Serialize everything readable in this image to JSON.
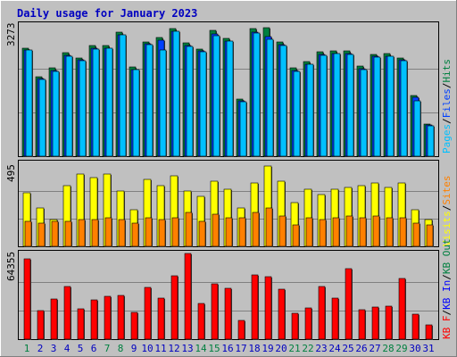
{
  "chart_data": {
    "type": "bar",
    "title": "Daily usage for January 2023",
    "colors": {
      "background": "#c0c0c0",
      "title": "#0000c0",
      "hits": "#008040",
      "files": "#0040ff",
      "pages": "#00c0ff",
      "visits": "#ffff00",
      "sites": "#ff8000",
      "kb_f": "#ff0000",
      "kb_in": "#0000ff",
      "kb_out": "#008040",
      "weekend_label": "#008040",
      "weekday_label": "#0000c0"
    },
    "days": [
      "1",
      "2",
      "3",
      "4",
      "5",
      "6",
      "7",
      "8",
      "9",
      "10",
      "11",
      "12",
      "13",
      "14",
      "15",
      "16",
      "17",
      "18",
      "19",
      "20",
      "21",
      "22",
      "23",
      "24",
      "25",
      "26",
      "27",
      "28",
      "29",
      "30",
      "31"
    ],
    "weekend_days": [
      "1",
      "7",
      "8",
      "14",
      "15",
      "21",
      "22",
      "28",
      "29"
    ],
    "top_panel": {
      "max_label": "3273",
      "max": 3273,
      "legend": [
        "Pages",
        "/",
        "Files",
        "/",
        "Hits"
      ],
      "series": [
        {
          "name": "Hits",
          "values": [
            2700,
            1980,
            2200,
            2580,
            2450,
            2760,
            2770,
            3090,
            2220,
            2850,
            2970,
            3180,
            2820,
            2670,
            3150,
            2950,
            1420,
            3180,
            3200,
            2840,
            2210,
            2350,
            2600,
            2620,
            2620,
            2240,
            2540,
            2550,
            2450,
            1520,
            810
          ]
        },
        {
          "name": "Files",
          "values": [
            2650,
            1930,
            2130,
            2520,
            2400,
            2700,
            2700,
            3030,
            2170,
            2800,
            2900,
            3120,
            2760,
            2620,
            3050,
            2880,
            1370,
            3100,
            2980,
            2780,
            2130,
            2300,
            2530,
            2560,
            2560,
            2180,
            2490,
            2500,
            2400,
            1480,
            780
          ]
        },
        {
          "name": "Pages",
          "values": [
            2640,
            1920,
            2120,
            2500,
            2380,
            2680,
            2690,
            3020,
            2160,
            2780,
            2660,
            3110,
            2740,
            2610,
            3000,
            2880,
            1350,
            3080,
            2920,
            2770,
            2120,
            2290,
            2520,
            2560,
            2540,
            2160,
            2480,
            2490,
            2380,
            1380,
            760
          ]
        }
      ]
    },
    "middle_panel": {
      "max_label": "495",
      "max": 495,
      "legend": [
        "Visits",
        "/",
        "Sites"
      ],
      "series": [
        {
          "name": "Visits",
          "values": [
            320,
            230,
            160,
            360,
            430,
            410,
            430,
            330,
            220,
            400,
            360,
            420,
            330,
            300,
            390,
            340,
            230,
            380,
            480,
            390,
            260,
            340,
            310,
            340,
            350,
            360,
            380,
            350,
            380,
            220,
            160
          ]
        },
        {
          "name": "Sites",
          "values": [
            150,
            140,
            150,
            150,
            160,
            160,
            170,
            160,
            140,
            170,
            160,
            170,
            200,
            150,
            190,
            170,
            170,
            200,
            230,
            180,
            130,
            170,
            160,
            170,
            180,
            170,
            180,
            170,
            170,
            140,
            130
          ]
        }
      ]
    },
    "bottom_panel": {
      "max_label": "64355",
      "max": 64355,
      "legend": [
        "KB F",
        "/",
        "KB In",
        "/",
        "KB Out"
      ],
      "series": [
        {
          "name": "KB F",
          "values": [
            60100,
            21500,
            30500,
            39600,
            23100,
            29600,
            31900,
            33100,
            19900,
            39100,
            30600,
            47900,
            64200,
            26900,
            41700,
            38500,
            14000,
            48300,
            46700,
            37700,
            19300,
            23300,
            39700,
            30600,
            52700,
            21800,
            24300,
            24800,
            45600,
            18700,
            10800
          ]
        }
      ]
    }
  }
}
